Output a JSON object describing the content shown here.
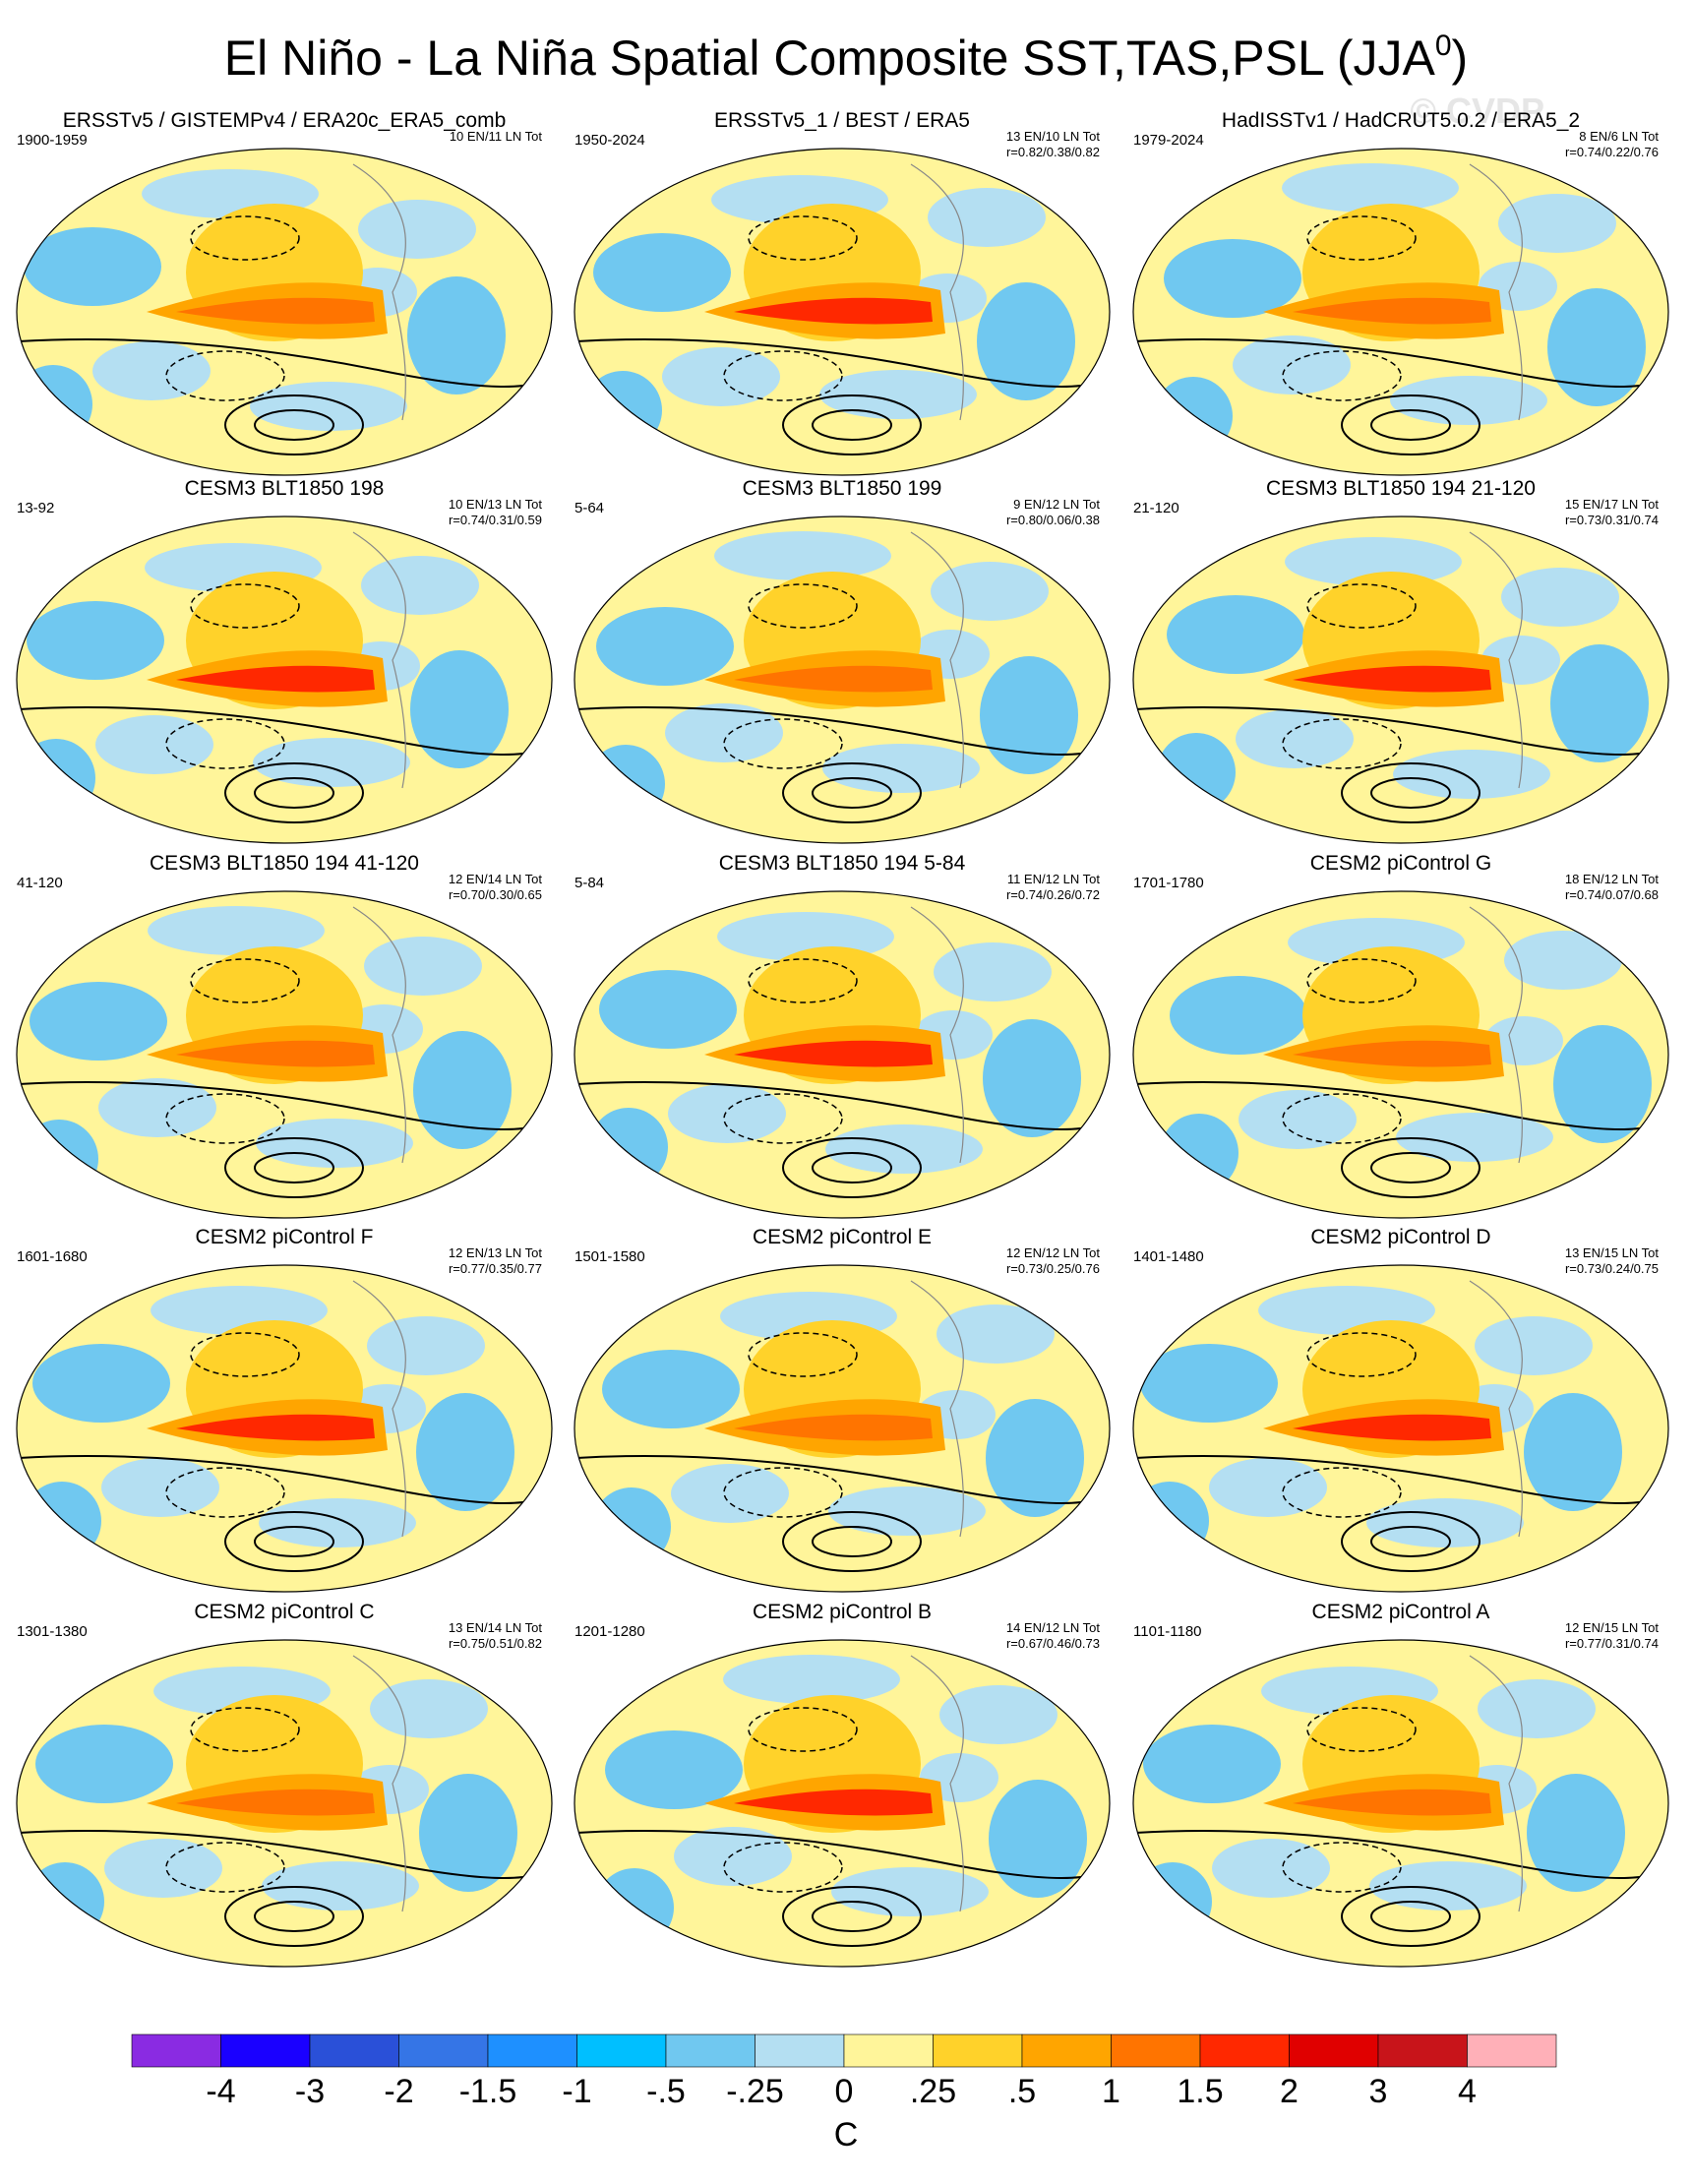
{
  "header": {
    "title": "El Niño - La Niña Spatial Composite SST,TAS,PSL (JJA",
    "title_superscript": "0",
    "title_end": ")",
    "watermark": "© CVDP"
  },
  "panels": [
    {
      "title": "ERSSTv5 / GISTEMPv4 / ERA20c_ERA5_comb",
      "period": "1900-1959",
      "counts": "10 EN/11 LN Tot"
    },
    {
      "title": "ERSSTv5_1 / BEST / ERA5",
      "period": "1950-2024",
      "counts": "13 EN/10 LN Tot",
      "corr": "r=0.82/0.38/0.82"
    },
    {
      "title": "HadISSTv1 / HadCRUT5.0.2 / ERA5_2",
      "period": "1979-2024",
      "counts": "8 EN/6 LN Tot",
      "corr": "r=0.74/0.22/0.76"
    },
    {
      "title": "CESM3 BLT1850 198",
      "period": "13-92",
      "counts": "10 EN/13 LN Tot",
      "corr": "r=0.74/0.31/0.59"
    },
    {
      "title": "CESM3 BLT1850 199",
      "period": "5-64",
      "counts": "9 EN/12 LN Tot",
      "corr": "r=0.80/0.06/0.38"
    },
    {
      "title": "CESM3 BLT1850 194 21-120",
      "period": "21-120",
      "counts": "15 EN/17 LN Tot",
      "corr": "r=0.73/0.31/0.74"
    },
    {
      "title": "CESM3 BLT1850 194 41-120",
      "period": "41-120",
      "counts": "12 EN/14 LN Tot",
      "corr": "r=0.70/0.30/0.65"
    },
    {
      "title": "CESM3 BLT1850 194 5-84",
      "period": "5-84",
      "counts": "11 EN/12 LN Tot",
      "corr": "r=0.74/0.26/0.72"
    },
    {
      "title": "CESM2 piControl G",
      "period": "1701-1780",
      "counts": "18 EN/12 LN Tot",
      "corr": "r=0.74/0.07/0.68"
    },
    {
      "title": "CESM2 piControl F",
      "period": "1601-1680",
      "counts": "12 EN/13 LN Tot",
      "corr": "r=0.77/0.35/0.77"
    },
    {
      "title": "CESM2 piControl E",
      "period": "1501-1580",
      "counts": "12 EN/12 LN Tot",
      "corr": "r=0.73/0.25/0.76"
    },
    {
      "title": "CESM2 piControl D",
      "period": "1401-1480",
      "counts": "13 EN/15 LN Tot",
      "corr": "r=0.73/0.24/0.75"
    },
    {
      "title": "CESM2 piControl C",
      "period": "1301-1380",
      "counts": "13 EN/14 LN Tot",
      "corr": "r=0.75/0.51/0.82"
    },
    {
      "title": "CESM2 piControl B",
      "period": "1201-1280",
      "counts": "14 EN/12 LN Tot",
      "corr": "r=0.67/0.46/0.73"
    },
    {
      "title": "CESM2 piControl A",
      "period": "1101-1180",
      "counts": "12 EN/15 LN Tot",
      "corr": "r=0.77/0.31/0.74"
    }
  ],
  "colorbar": {
    "colors": [
      "#8a2be2",
      "#1a00ff",
      "#2a50d8",
      "#3575e6",
      "#1e90ff",
      "#00bfff",
      "#70c8f0",
      "#b4dff2",
      "#fff59a",
      "#ffd22a",
      "#ffa500",
      "#ff7400",
      "#ff2800",
      "#e00000",
      "#c8141a",
      "#ffb0b8"
    ],
    "levels": [
      -4,
      -3,
      -2,
      {
        "value": -1.5,
        "label": "-1.5"
      },
      -1,
      {
        "value": -0.5,
        "label": "-.5"
      },
      {
        "value": -0.25,
        "label": "-.25"
      },
      0,
      {
        "value": 0.25,
        "label": ".25"
      },
      {
        "value": 0.5,
        "label": ".5"
      },
      1,
      1.5,
      2,
      3,
      4
    ],
    "unit": "C"
  }
}
